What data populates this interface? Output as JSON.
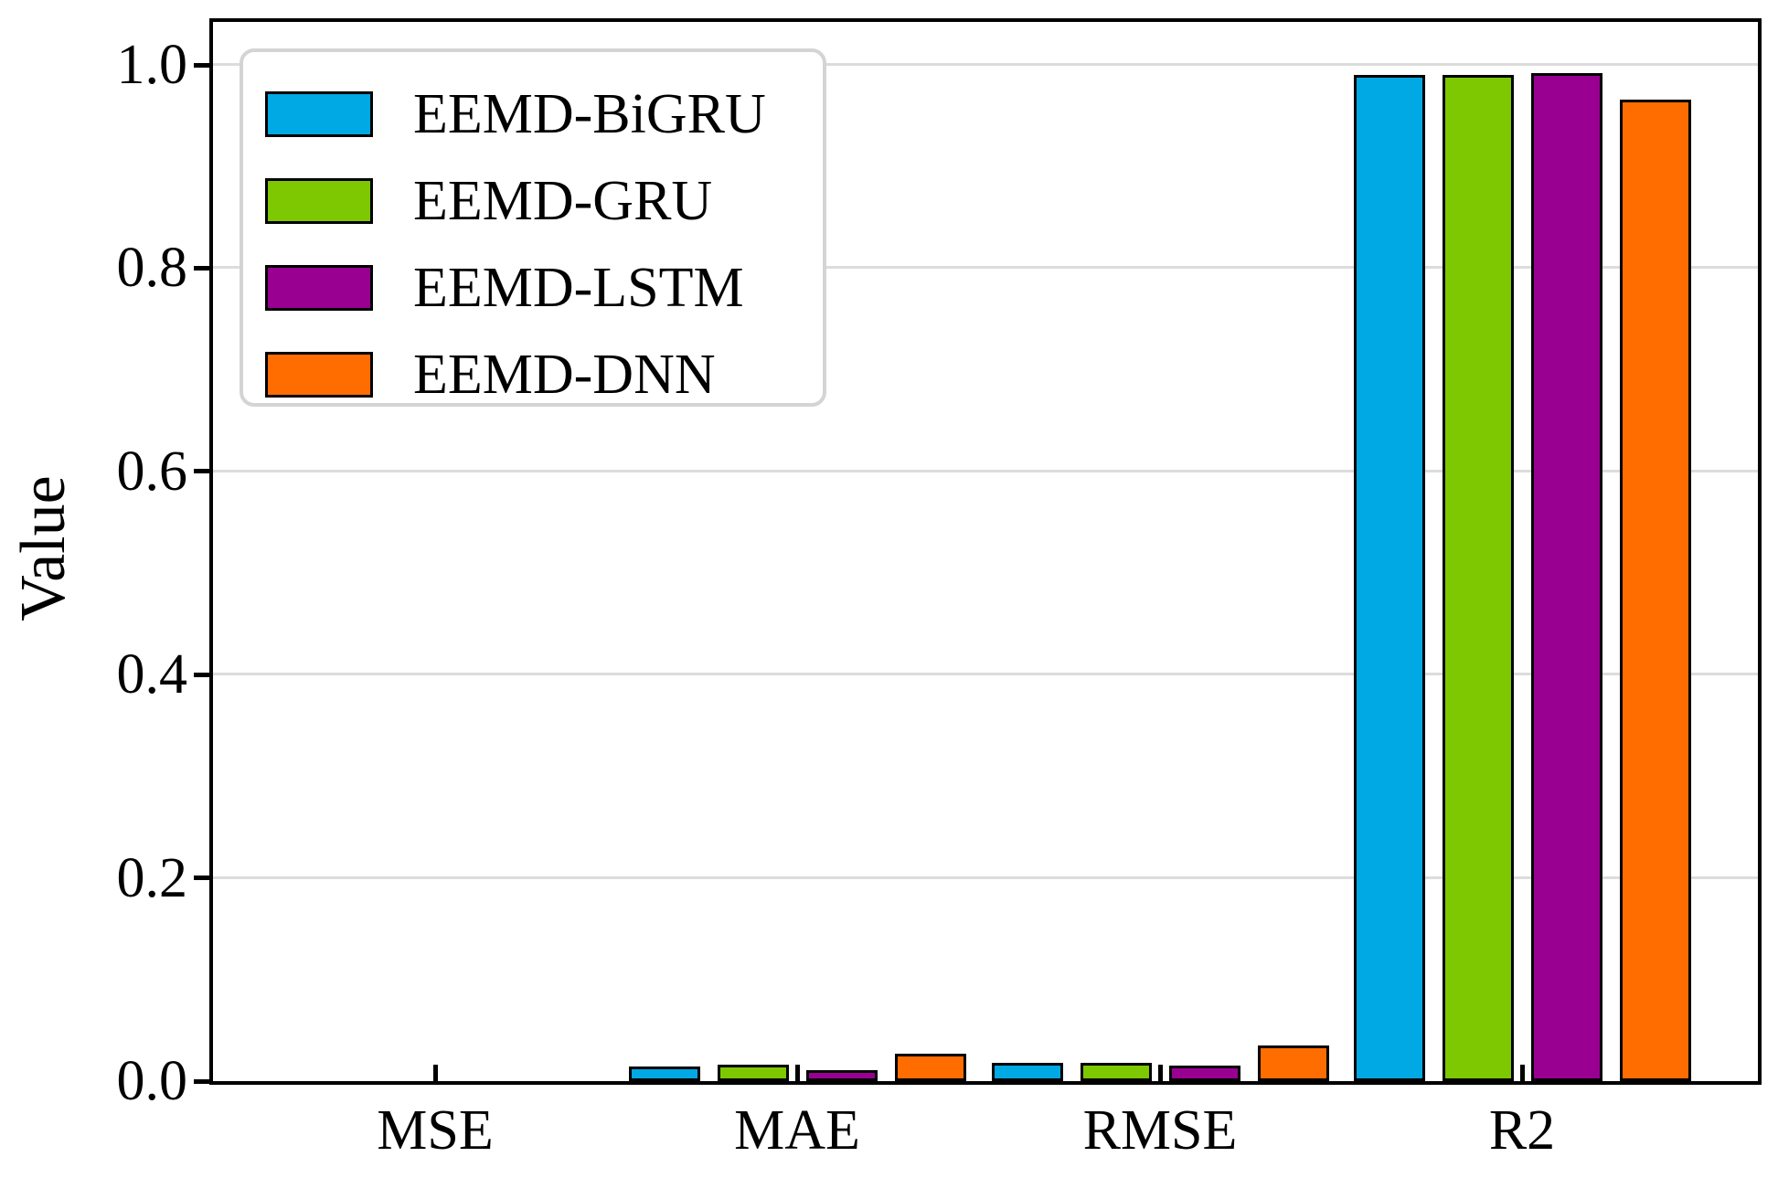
{
  "chart_data": {
    "type": "bar",
    "title": "",
    "xlabel": "",
    "ylabel": "Value",
    "categories": [
      "MSE",
      "MAE",
      "RMSE",
      "R2"
    ],
    "series": [
      {
        "name": "EEMD-BiGRU",
        "color": "#00A8E4",
        "values": [
          0.0003,
          0.014,
          0.018,
          0.99
        ]
      },
      {
        "name": "EEMD-GRU",
        "color": "#7DC801",
        "values": [
          0.0003,
          0.016,
          0.018,
          0.99
        ]
      },
      {
        "name": "EEMD-LSTM",
        "color": "#990092",
        "values": [
          0.0002,
          0.011,
          0.015,
          0.992
        ]
      },
      {
        "name": "EEMD-DNN",
        "color": "#FF6C00",
        "values": [
          0.0012,
          0.027,
          0.035,
          0.966
        ]
      }
    ],
    "ylim": [
      0,
      1.042
    ],
    "yticks": [
      0.0,
      0.2,
      0.4,
      0.6,
      0.8,
      1.0
    ],
    "ytick_labels": [
      "0.0",
      "0.2",
      "0.4",
      "0.6",
      "0.8",
      "1.0"
    ],
    "legend_position": "upper left",
    "grid": "horizontal",
    "grid_color": "#dcdcdc",
    "bar_edge_color": "#000000"
  }
}
